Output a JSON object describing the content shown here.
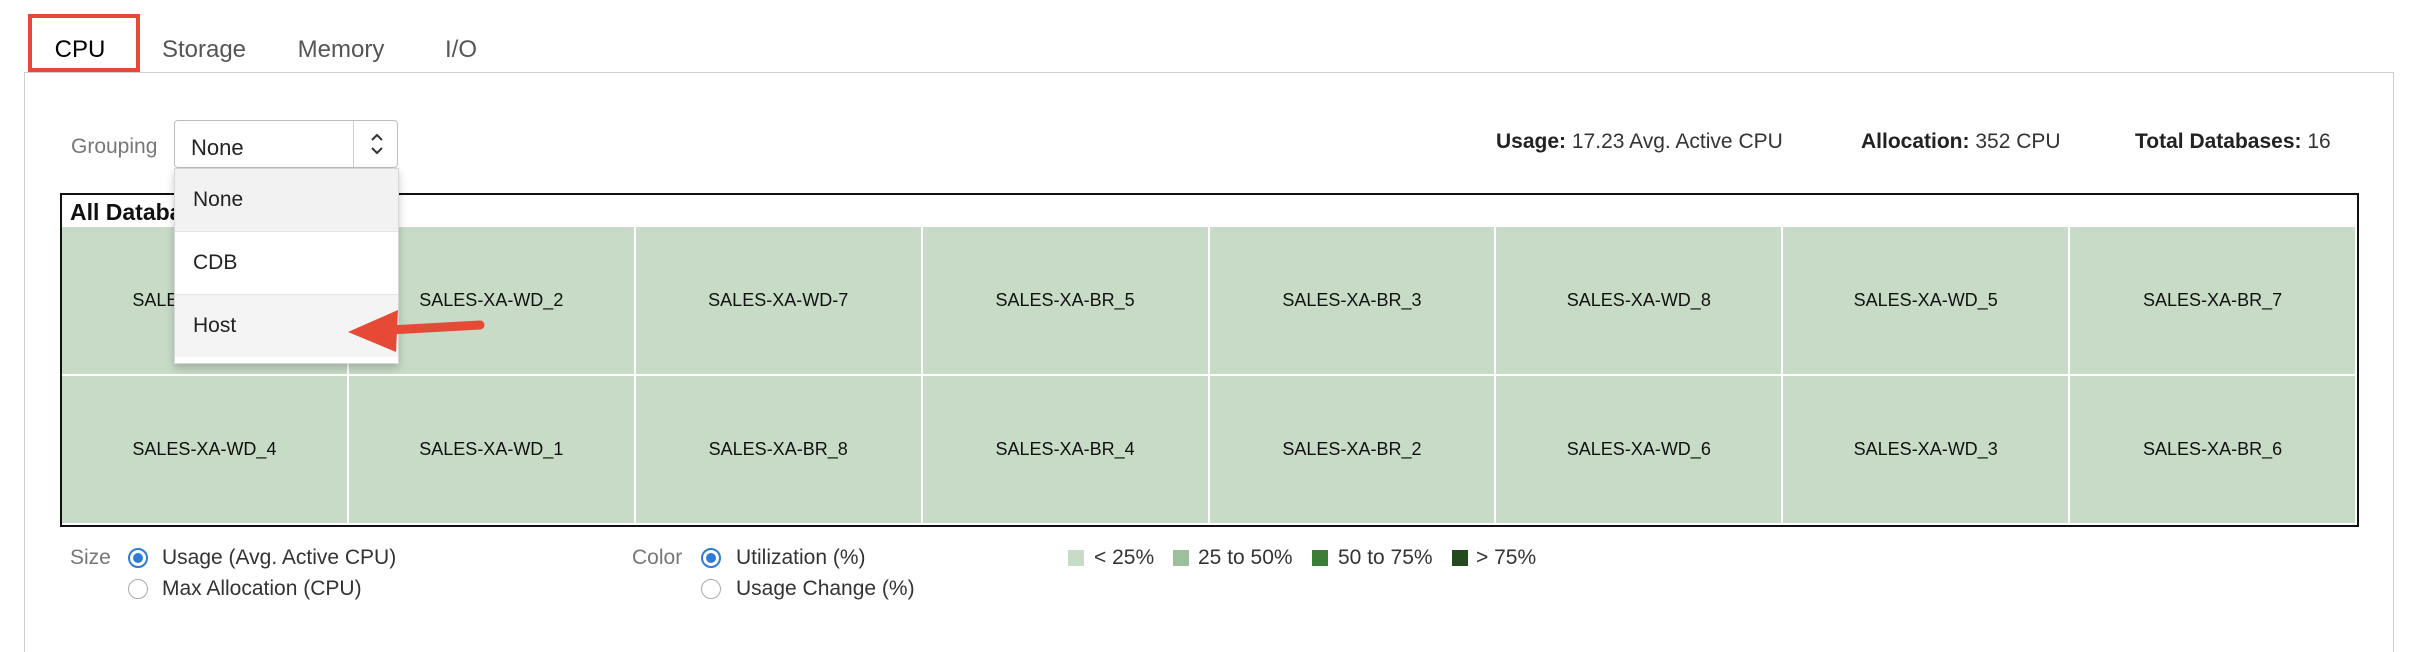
{
  "tabs": [
    {
      "label": "CPU",
      "active": true
    },
    {
      "label": "Storage",
      "active": false
    },
    {
      "label": "Memory",
      "active": false
    },
    {
      "label": "I/O",
      "active": false
    }
  ],
  "grouping": {
    "label": "Grouping",
    "value": "None",
    "options": [
      "None",
      "CDB",
      "Host"
    ],
    "caret_icon": "up-down-chevron-icon"
  },
  "stats": {
    "usage_label": "Usage:",
    "usage_value": "17.23 Avg. Active CPU",
    "allocation_label": "Allocation:",
    "allocation_value": "352 CPU",
    "total_label": "Total Databases:",
    "total_value": "16"
  },
  "treemap": {
    "title": "All Databa",
    "fill_color": "#c7dbc6",
    "rows": [
      [
        "SALES-XA-WD_9",
        "SALES-XA-WD_2",
        "SALES-XA-WD-7",
        "SALES-XA-BR_5",
        "SALES-XA-BR_3",
        "SALES-XA-WD_8",
        "SALES-XA-WD_5",
        "SALES-XA-BR_7"
      ],
      [
        "SALES-XA-WD_4",
        "SALES-XA-WD_1",
        "SALES-XA-BR_8",
        "SALES-XA-BR_4",
        "SALES-XA-BR_2",
        "SALES-XA-WD_6",
        "SALES-XA-WD_3",
        "SALES-XA-BR_6"
      ]
    ]
  },
  "size_control": {
    "label": "Size",
    "options": [
      "Usage (Avg. Active CPU)",
      "Max Allocation (CPU)"
    ],
    "selected": 0
  },
  "color_control": {
    "label": "Color",
    "options": [
      "Utilization (%)",
      "Usage Change (%)"
    ],
    "selected": 0
  },
  "legend": [
    {
      "label": "< 25%",
      "color": "#c7dbc6"
    },
    {
      "label": "25 to 50%",
      "color": "#9dbf9b"
    },
    {
      "label": "50 to 75%",
      "color": "#3c7d37"
    },
    {
      "label": "> 75%",
      "color": "#234a1f"
    }
  ],
  "annotation": {
    "arrow_color": "#e64a36",
    "highlight_color": "#e64a36"
  }
}
